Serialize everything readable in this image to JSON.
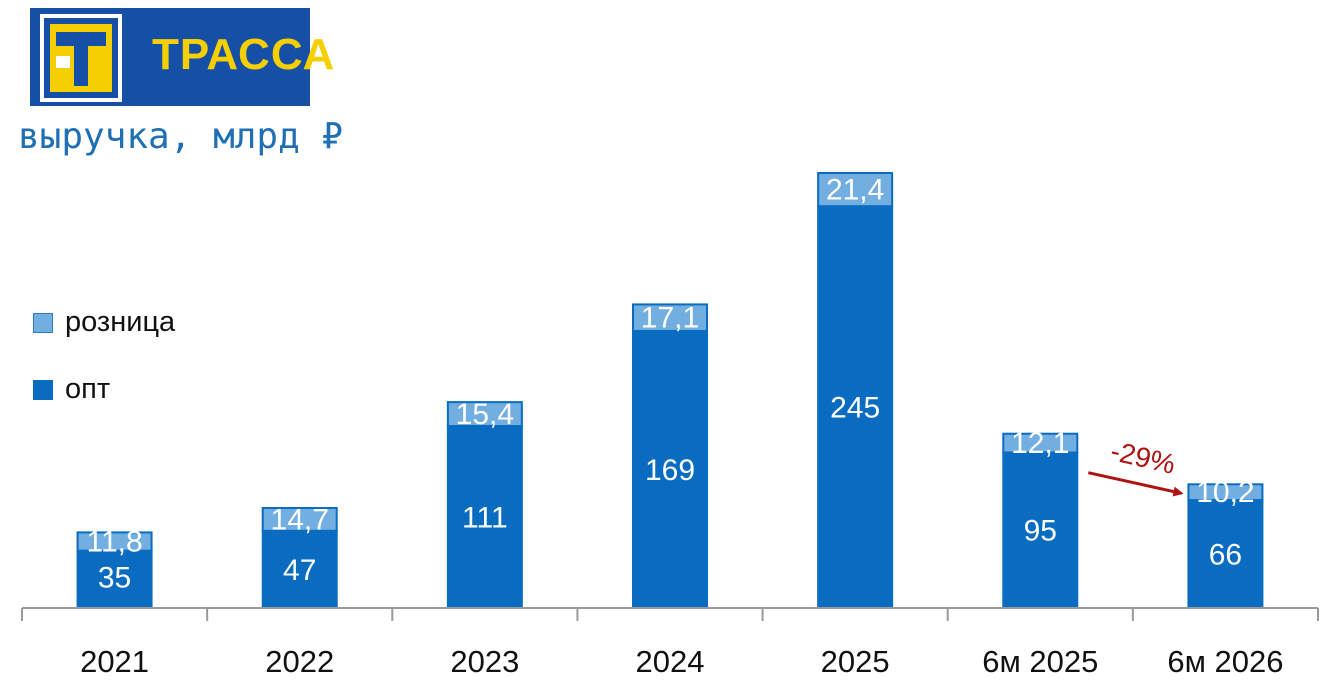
{
  "logo": {
    "text": "ТРАССА"
  },
  "title": "выручка, млрд ₽",
  "legend": [
    {
      "label": "розница",
      "color": "#72aee0"
    },
    {
      "label": "опт",
      "color": "#0a6cc1"
    }
  ],
  "annotation": {
    "text": "-29%",
    "color": "#b01212"
  },
  "chart_data": {
    "type": "bar",
    "stacked": true,
    "title": "выручка, млрд ₽",
    "categories": [
      "2021",
      "2022",
      "2023",
      "2024",
      "2025",
      "6м 2025",
      "6м 2026"
    ],
    "series": [
      {
        "name": "опт",
        "values": [
          35,
          47,
          111,
          169,
          245,
          95,
          66
        ],
        "labels": [
          "35",
          "47",
          "111",
          "169",
          "245",
          "95",
          "66"
        ],
        "color": "#0a6cc1"
      },
      {
        "name": "розница",
        "values": [
          11.8,
          14.7,
          15.4,
          17.1,
          21.4,
          12.1,
          10.2
        ],
        "labels": [
          "11,8",
          "14,7",
          "15,4",
          "17,1",
          "21,4",
          "12,1",
          "10,2"
        ],
        "color": "#72aee0"
      }
    ],
    "legend_position": "left"
  }
}
